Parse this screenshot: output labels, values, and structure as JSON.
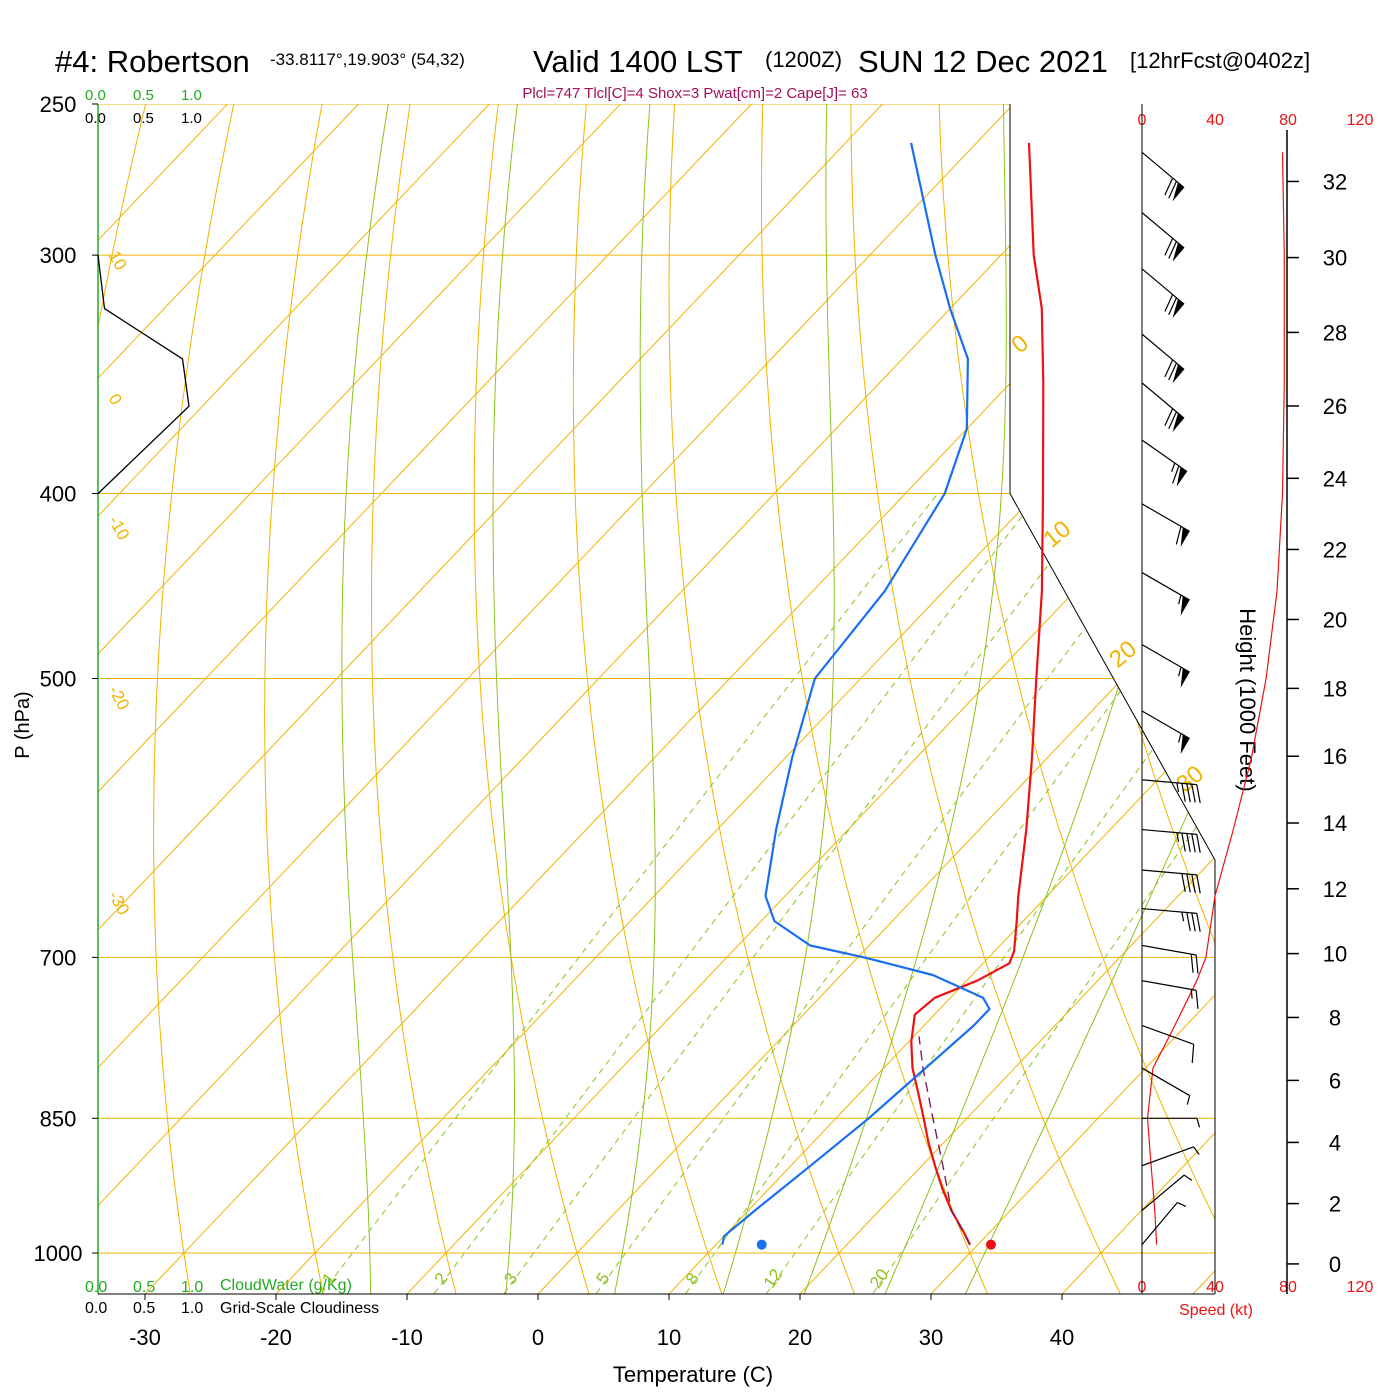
{
  "header": {
    "station": "#4: Robertson",
    "coords": "-33.8117°,19.903° (54,32)",
    "valid": "Valid 1400 LST",
    "utc": "(1200Z)",
    "date": "SUN 12 Dec 2021",
    "forecast": "[12hrFcst@0402z]",
    "indices": "Plcl=747 Tlcl[C]=4 Shox=3 Pwat[cm]=2 Cape[J]= 63"
  },
  "colors": {
    "temperature": "#ee1111",
    "dewpoint": "#1a6ff0",
    "isobar": "#f0b400",
    "isotherm": "#f0b400",
    "dry_adiabat": "#f0b400",
    "moist_adiabat": "#8cc21e",
    "mixing_ratio": "#8cc21e",
    "cloudwater": "#22aa22",
    "speed": "#ee1111",
    "parcel": "#7a1a6a",
    "indices": "#a0105a"
  },
  "scale_labels": {
    "top_cloudwater": [
      "0.0",
      "0.5",
      "1.0"
    ],
    "top_cloudiness": [
      "0.0",
      "0.5",
      "1.0"
    ],
    "bottom_cloudwater": [
      "0.0",
      "0.5",
      "1.0"
    ],
    "bottom_cloudwater_title": "CloudWater (g/Kg)",
    "bottom_cloudiness": [
      "0.0",
      "0.5",
      "1.0"
    ],
    "bottom_cloudiness_title": "Grid-Scale Cloudiness",
    "speed_ticks": [
      "0",
      "40",
      "80",
      "120"
    ],
    "speed_title": "Speed (kt)"
  },
  "chart_data": {
    "type": "line",
    "subtype": "skew-T log-P sounding",
    "xlabel": "Temperature (C)",
    "ylabel": "P (hPa)",
    "y2label": "Height (1000 Feet)",
    "x_ticks": [
      -30,
      -20,
      -10,
      0,
      10,
      20,
      30,
      40
    ],
    "p_ticks": [
      250,
      300,
      400,
      500,
      700,
      850,
      1000
    ],
    "height_ticks": [
      0,
      2,
      4,
      6,
      8,
      10,
      12,
      14,
      16,
      18,
      20,
      22,
      24,
      26,
      28,
      30,
      32
    ],
    "ylim_hpa": [
      1050,
      250
    ],
    "xlim_c": [
      -30,
      40
    ],
    "isotherm_labels": [
      "10",
      "0",
      "-10",
      "-20",
      "-30",
      "0",
      "10",
      "20",
      "30"
    ],
    "mixing_ratio_labels": [
      "1",
      "2",
      "3",
      "5",
      "8",
      "12",
      "20"
    ],
    "series": [
      {
        "name": "Temperature",
        "points": [
          {
            "p": 990,
            "t": 29.4
          },
          {
            "p": 975,
            "t": 28.0
          },
          {
            "p": 950,
            "t": 25.5
          },
          {
            "p": 925,
            "t": 23.2
          },
          {
            "p": 900,
            "t": 21.0
          },
          {
            "p": 875,
            "t": 18.8
          },
          {
            "p": 850,
            "t": 16.7
          },
          {
            "p": 825,
            "t": 14.5
          },
          {
            "p": 800,
            "t": 12.2
          },
          {
            "p": 775,
            "t": 10.2
          },
          {
            "p": 750,
            "t": 8.5
          },
          {
            "p": 735,
            "t": 8.8
          },
          {
            "p": 720,
            "t": 10.8
          },
          {
            "p": 705,
            "t": 12.0
          },
          {
            "p": 695,
            "t": 11.5
          },
          {
            "p": 670,
            "t": 9.5
          },
          {
            "p": 650,
            "t": 7.8
          },
          {
            "p": 600,
            "t": 3.6
          },
          {
            "p": 550,
            "t": -1.2
          },
          {
            "p": 500,
            "t": -6.6
          },
          {
            "p": 450,
            "t": -12.5
          },
          {
            "p": 400,
            "t": -19.5
          },
          {
            "p": 350,
            "t": -27.5
          },
          {
            "p": 320,
            "t": -33.0
          },
          {
            "p": 300,
            "t": -37.5
          },
          {
            "p": 262,
            "t": -46.0
          }
        ]
      },
      {
        "name": "Dewpoint",
        "points": [
          {
            "p": 990,
            "t": 10.5
          },
          {
            "p": 980,
            "t": 10.0
          },
          {
            "p": 950,
            "t": 10.5
          },
          {
            "p": 900,
            "t": 11.5
          },
          {
            "p": 850,
            "t": 12.5
          },
          {
            "p": 800,
            "t": 13.2
          },
          {
            "p": 760,
            "t": 13.8
          },
          {
            "p": 745,
            "t": 13.8
          },
          {
            "p": 735,
            "t": 12.5
          },
          {
            "p": 715,
            "t": 7.0
          },
          {
            "p": 700,
            "t": 0.5
          },
          {
            "p": 690,
            "t": -4.5
          },
          {
            "p": 670,
            "t": -9.0
          },
          {
            "p": 650,
            "t": -11.5
          },
          {
            "p": 600,
            "t": -15.5
          },
          {
            "p": 550,
            "t": -19.5
          },
          {
            "p": 500,
            "t": -23.5
          },
          {
            "p": 450,
            "t": -24.5
          },
          {
            "p": 400,
            "t": -27.0
          },
          {
            "p": 370,
            "t": -30.0
          },
          {
            "p": 340,
            "t": -35.0
          },
          {
            "p": 320,
            "t": -40.0
          },
          {
            "p": 300,
            "t": -45.0
          },
          {
            "p": 262,
            "t": -55.0
          }
        ]
      },
      {
        "name": "Parcel",
        "points": [
          {
            "p": 990,
            "t": 29.4
          },
          {
            "p": 950,
            "t": 25.5
          },
          {
            "p": 900,
            "t": 21.6
          },
          {
            "p": 850,
            "t": 17.4
          },
          {
            "p": 800,
            "t": 13.0
          },
          {
            "p": 770,
            "t": 10.4
          }
        ]
      }
    ],
    "surface_markers": [
      {
        "name": "surface temperature",
        "p": 990,
        "t": 31.0
      },
      {
        "name": "surface dewpoint",
        "p": 990,
        "t": 13.5
      }
    ],
    "cloudiness_profile": [
      {
        "p": 400,
        "v": 0.0
      },
      {
        "p": 360,
        "v": 0.7
      },
      {
        "p": 340,
        "v": 0.65
      },
      {
        "p": 320,
        "v": 0.05
      },
      {
        "p": 300,
        "v": 0.0
      }
    ],
    "wind_speed_kt": [
      {
        "p": 990,
        "s": 8
      },
      {
        "p": 950,
        "s": 7
      },
      {
        "p": 900,
        "s": 5
      },
      {
        "p": 850,
        "s": 3
      },
      {
        "p": 800,
        "s": 6
      },
      {
        "p": 760,
        "s": 18
      },
      {
        "p": 720,
        "s": 30
      },
      {
        "p": 700,
        "s": 35
      },
      {
        "p": 650,
        "s": 40
      },
      {
        "p": 600,
        "s": 50
      },
      {
        "p": 550,
        "s": 60
      },
      {
        "p": 500,
        "s": 68
      },
      {
        "p": 450,
        "s": 74
      },
      {
        "p": 400,
        "s": 77
      },
      {
        "p": 350,
        "s": 78
      },
      {
        "p": 300,
        "s": 78
      },
      {
        "p": 265,
        "s": 77
      }
    ],
    "wind_barbs": [
      {
        "p": 265,
        "dir": 310,
        "s": 70
      },
      {
        "p": 285,
        "dir": 310,
        "s": 70
      },
      {
        "p": 305,
        "dir": 310,
        "s": 70
      },
      {
        "p": 330,
        "dir": 310,
        "s": 70
      },
      {
        "p": 350,
        "dir": 310,
        "s": 70
      },
      {
        "p": 375,
        "dir": 305,
        "s": 65
      },
      {
        "p": 405,
        "dir": 300,
        "s": 60
      },
      {
        "p": 440,
        "dir": 300,
        "s": 55
      },
      {
        "p": 480,
        "dir": 300,
        "s": 55
      },
      {
        "p": 520,
        "dir": 300,
        "s": 55
      },
      {
        "p": 565,
        "dir": 275,
        "s": 45
      },
      {
        "p": 600,
        "dir": 275,
        "s": 45
      },
      {
        "p": 630,
        "dir": 275,
        "s": 40
      },
      {
        "p": 660,
        "dir": 275,
        "s": 35
      },
      {
        "p": 690,
        "dir": 280,
        "s": 20
      },
      {
        "p": 720,
        "dir": 280,
        "s": 15
      },
      {
        "p": 760,
        "dir": 290,
        "s": 10
      },
      {
        "p": 800,
        "dir": 300,
        "s": 5
      },
      {
        "p": 850,
        "dir": 270,
        "s": 5
      },
      {
        "p": 900,
        "dir": 250,
        "s": 5
      },
      {
        "p": 950,
        "dir": 230,
        "s": 5
      },
      {
        "p": 990,
        "dir": 220,
        "s": 5
      }
    ]
  }
}
